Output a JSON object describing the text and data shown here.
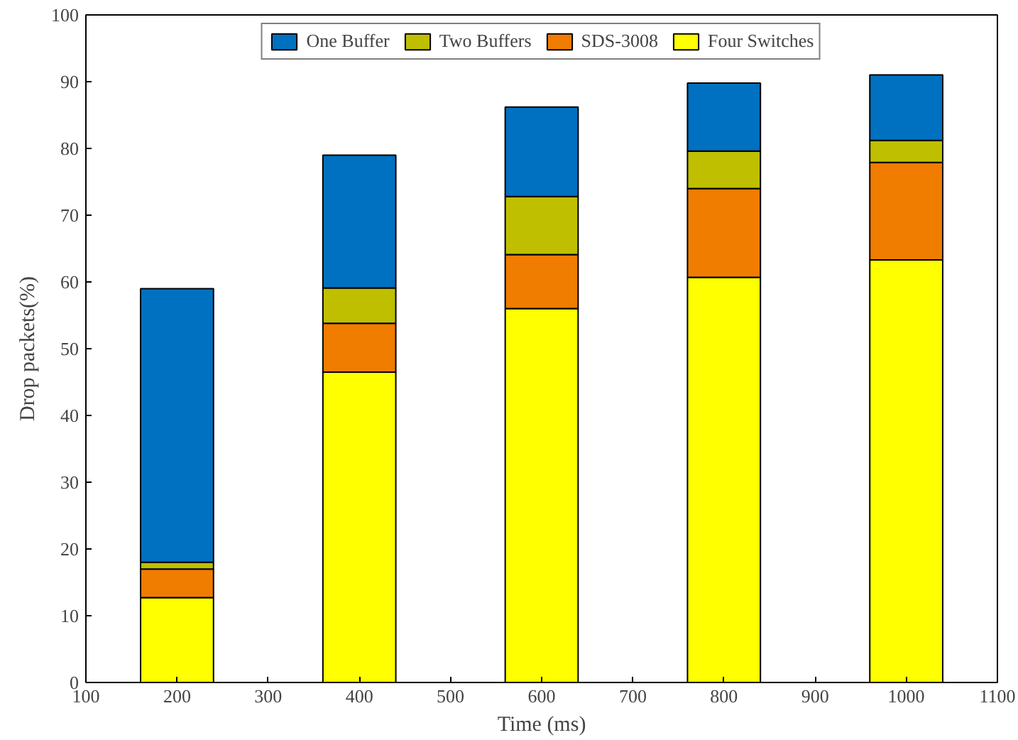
{
  "chart_data": {
    "type": "bar",
    "stacked": true,
    "xlabel": "Time (ms)",
    "ylabel": "Drop packets(%)",
    "x": [
      200,
      400,
      600,
      800,
      1000
    ],
    "series": [
      {
        "name": "Four Switches",
        "color": "#ffff00",
        "values": [
          12.7,
          46.5,
          56,
          60.7,
          63.3
        ]
      },
      {
        "name": "SDS-3008",
        "color": "#f07c00",
        "values": [
          4.3,
          7.3,
          8.1,
          13.3,
          14.6
        ]
      },
      {
        "name": "Two Buffers",
        "color": "#bfbf00",
        "values": [
          1.0,
          5.3,
          8.7,
          5.6,
          3.3
        ]
      },
      {
        "name": "One Buffer",
        "color": "#0070c0",
        "values": [
          41,
          19.9,
          13.4,
          10.2,
          9.8
        ]
      }
    ],
    "xlim": [
      100,
      1100
    ],
    "xticks": [
      100,
      200,
      300,
      400,
      500,
      600,
      700,
      800,
      900,
      1000,
      1100
    ],
    "ylim": [
      0,
      100
    ],
    "yticks": [
      0,
      10,
      20,
      30,
      40,
      50,
      60,
      70,
      80,
      90,
      100
    ],
    "grid": false,
    "legend": "top"
  }
}
